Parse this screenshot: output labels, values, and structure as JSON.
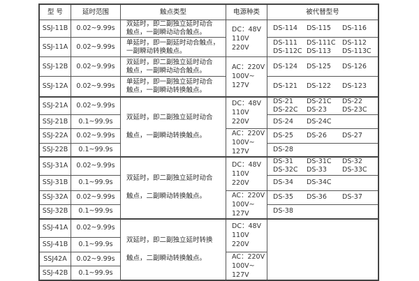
{
  "headers": [
    "型 号",
    "延时范围",
    "触点类型",
    "电源种类",
    "被代替型号"
  ],
  "groups": [
    {
      "rows": [
        {
          "model": "SSJ-11B",
          "range": "0.02~9.99s",
          "contact": [
            "双延时，即二副独立延时动合",
            "触点，一副瞬动动合触点。"
          ],
          "repl": [
            [
              "DS-114",
              "DS-115",
              "DS-116"
            ]
          ]
        },
        {
          "model": "SSJ-11A",
          "range": "0.02~9.99s",
          "contact": [
            "单延时，即一副延时动合触点，",
            "一副瞬动转换触点。"
          ],
          "repl": [
            [
              "DS-111",
              "DS-111C",
              "DS-112"
            ],
            [
              "DS-112C",
              "DS-113",
              "DS-113C"
            ]
          ]
        }
      ],
      "power": [
        {
          "lines": [
            "DC：48V",
            "110V",
            "220V"
          ],
          "span": 2
        }
      ]
    },
    {
      "rows": [
        {
          "model": "SSJ-12B",
          "range": "0.02~9.99s",
          "contact": [
            "双延时，即二副独立延时动合",
            "触点，一副瞬动动合触点。"
          ],
          "repl": [
            [
              "DS-124",
              "DS-125",
              "DS-126"
            ]
          ]
        },
        {
          "model": "SSJ-12A",
          "range": "0.02~9.99s",
          "contact": [
            "单延时，即一副独立延时动合",
            "触点，一副瞬动转换触点。"
          ],
          "repl": [
            [
              "DS-121",
              "DS-122",
              "DS-123"
            ]
          ]
        }
      ],
      "power": [
        {
          "lines": [
            "AC：220V",
            "100V~",
            "127V"
          ],
          "span": 2
        }
      ]
    },
    {
      "contact": [
        "双延时，即二副独立延时动合",
        "触点，一副瞬动转换触点。"
      ],
      "rows": [
        {
          "model": "SSJ-21A",
          "range": "0.02~9.99s",
          "repl": [
            [
              "DS-21",
              "DS-21C",
              "DS-22"
            ],
            [
              "DS-22C",
              "DS-23",
              "DS-23C"
            ]
          ]
        },
        {
          "model": "SSJ-21B",
          "range": "0.1~99.9s",
          "repl": [
            [
              "DS-24",
              "DS-24C",
              ""
            ]
          ]
        },
        {
          "model": "SSJ-22A",
          "range": "0.02~9.99s",
          "repl": [
            [
              "DS-25",
              "DS-26",
              "DS-27"
            ]
          ]
        },
        {
          "model": "SSJ-22B",
          "range": "0.1~99.9s",
          "repl": [
            [
              "DS-28",
              "",
              ""
            ]
          ]
        }
      ],
      "power": [
        {
          "lines": [
            "DC：48V",
            "110V",
            "220V"
          ],
          "span": 2
        },
        {
          "lines": [
            "AC：220V",
            "100V~",
            "127V"
          ],
          "span": 2
        }
      ]
    },
    {
      "contact": [
        "双延时，即二副独立延时动合",
        "触点，二副瞬动转换触点。"
      ],
      "rows": [
        {
          "model": "SSJ-31A",
          "range": "0.02~9.99s",
          "repl": [
            [
              "DS-31",
              "DS-31C",
              "DS-32"
            ],
            [
              "DS-32C",
              "DS-33",
              "DS-33C"
            ]
          ]
        },
        {
          "model": "SSJ-31B",
          "range": "0.1~99.9s",
          "repl": [
            [
              "DS-34",
              "DS-34C",
              ""
            ]
          ]
        },
        {
          "model": "SSJ-32A",
          "range": "0.02~9.99s",
          "repl": [
            [
              "DS-35",
              "DS-36",
              "DS-37"
            ]
          ]
        },
        {
          "model": "SSJ-32B",
          "range": "0.1~99.9s",
          "repl": [
            [
              "DS-38",
              "",
              ""
            ]
          ]
        }
      ],
      "power": [
        {
          "lines": [
            "DC：48V",
            "110V",
            "220V"
          ],
          "span": 2
        },
        {
          "lines": [
            "AC：220V",
            "100V~",
            "127V"
          ],
          "span": 2
        }
      ]
    },
    {
      "contact": [
        "双延时，即二副独立延时转换",
        "触点，二副瞬动转换触点。"
      ],
      "replEmpty": true,
      "rows": [
        {
          "model": "SSJ-41A",
          "range": "0.02~9.99s"
        },
        {
          "model": "SSJ-41B",
          "range": "0.1~99.9s"
        },
        {
          "model": "SSJ42A",
          "range": "0.02~9.99s"
        },
        {
          "model": "SSJ-42B",
          "range": "0.1~99.9s"
        }
      ],
      "power": [
        {
          "lines": [
            "DC：48V",
            "110V",
            "220V"
          ],
          "span": 2
        },
        {
          "lines": [
            "AC：220V",
            "100V~",
            "127V"
          ],
          "span": 2
        }
      ]
    }
  ]
}
